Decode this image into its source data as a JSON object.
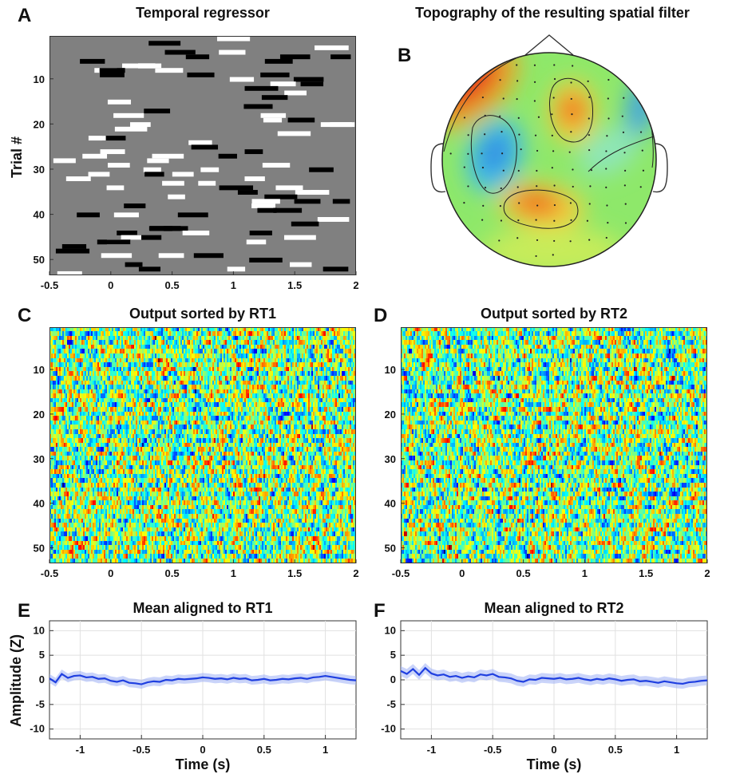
{
  "panels": {
    "A": {
      "letter": "A",
      "title": "Temporal regressor",
      "ylabel": "Trial #"
    },
    "B": {
      "letter": "B",
      "title": "Topography of the resulting spatial filter"
    },
    "C": {
      "letter": "C",
      "title": "Output sorted by RT1"
    },
    "D": {
      "letter": "D",
      "title": "Output sorted by RT2"
    },
    "E": {
      "letter": "E",
      "title": "Mean aligned to RT1",
      "ylabel": "Amplitude (Z)",
      "xlabel": "Time (s)"
    },
    "F": {
      "letter": "F",
      "title": "Mean aligned to RT2",
      "xlabel": "Time (s)"
    }
  },
  "chart_data": [
    {
      "id": "A",
      "type": "heatmap",
      "title": "Temporal regressor",
      "ylabel": "Trial #",
      "xlim": [
        -0.5,
        2
      ],
      "ylim": [
        0.5,
        53.5
      ],
      "y_reversed": true,
      "xticks": [
        -0.5,
        0,
        0.5,
        1,
        1.5,
        2
      ],
      "yticks": [
        10,
        20,
        30,
        40,
        50
      ],
      "colors": {
        "background": "#808080",
        "positive": "#ffffff",
        "negative": "#000000"
      }
    },
    {
      "id": "B",
      "type": "heatmap",
      "title": "Topography of the resulting spatial filter",
      "colormap": "jet",
      "maxima": [
        {
          "region": "left frontal",
          "sign": "positive"
        },
        {
          "region": "central",
          "sign": "positive"
        },
        {
          "region": "posterior midline",
          "sign": "positive"
        },
        {
          "region": "left temporal",
          "sign": "negative"
        },
        {
          "region": "right frontal",
          "sign": "negative"
        }
      ]
    },
    {
      "id": "C",
      "type": "heatmap",
      "title": "Output sorted by RT1",
      "colormap": "jet",
      "xlim": [
        -0.5,
        2
      ],
      "ylim": [
        0.5,
        53.5
      ],
      "y_reversed": true,
      "xticks": [
        -0.5,
        0,
        0.5,
        1,
        1.5,
        2
      ],
      "yticks": [
        10,
        20,
        30,
        40,
        50
      ]
    },
    {
      "id": "D",
      "type": "heatmap",
      "title": "Output sorted by RT2",
      "colormap": "jet",
      "xlim": [
        -0.5,
        2
      ],
      "ylim": [
        0.5,
        53.5
      ],
      "y_reversed": true,
      "xticks": [
        -0.5,
        0,
        0.5,
        1,
        1.5,
        2
      ],
      "yticks": [
        10,
        20,
        30,
        40,
        50
      ]
    },
    {
      "id": "E",
      "type": "line",
      "title": "Mean aligned to RT1",
      "xlabel": "Time (s)",
      "ylabel": "Amplitude (Z)",
      "xlim": [
        -1.25,
        1.25
      ],
      "ylim": [
        -12,
        12
      ],
      "xticks": [
        -1,
        -0.5,
        0,
        0.5,
        1
      ],
      "yticks": [
        -10,
        -5,
        0,
        5,
        10
      ],
      "grid": true,
      "line_color": "#1f3fe0",
      "series": [
        {
          "x": [
            -1.25,
            -1.2,
            -1.15,
            -1.1,
            -1.05,
            -1.0,
            -0.95,
            -0.9,
            -0.85,
            -0.8,
            -0.75,
            -0.7,
            -0.65,
            -0.6,
            -0.55,
            -0.5,
            -0.45,
            -0.4,
            -0.35,
            -0.3,
            -0.25,
            -0.2,
            -0.15,
            -0.1,
            -0.05,
            0.0,
            0.05,
            0.1,
            0.15,
            0.2,
            0.25,
            0.3,
            0.35,
            0.4,
            0.45,
            0.5,
            0.55,
            0.6,
            0.65,
            0.7,
            0.75,
            0.8,
            0.85,
            0.9,
            0.95,
            1.0,
            1.05,
            1.1,
            1.15,
            1.2,
            1.25
          ],
          "y": [
            0.3,
            -0.5,
            1.2,
            0.4,
            0.8,
            0.9,
            0.5,
            0.6,
            0.2,
            0.3,
            -0.2,
            -0.4,
            -0.1,
            -0.6,
            -0.7,
            -0.9,
            -0.5,
            -0.3,
            -0.4,
            0.0,
            -0.1,
            0.2,
            0.1,
            0.2,
            0.3,
            0.5,
            0.4,
            0.2,
            0.3,
            0.1,
            0.4,
            0.2,
            0.3,
            -0.1,
            0.0,
            0.2,
            -0.1,
            0.0,
            0.2,
            0.1,
            0.3,
            0.4,
            0.2,
            0.5,
            0.6,
            0.8,
            0.6,
            0.4,
            0.2,
            0.0,
            -0.1
          ],
          "band": 0.9
        }
      ]
    },
    {
      "id": "F",
      "type": "line",
      "title": "Mean aligned to RT2",
      "xlabel": "Time (s)",
      "ylabel": "",
      "xlim": [
        -1.25,
        1.25
      ],
      "ylim": [
        -12,
        12
      ],
      "xticks": [
        -1,
        -0.5,
        0,
        0.5,
        1
      ],
      "yticks": [
        -10,
        -5,
        0,
        5,
        10
      ],
      "grid": true,
      "line_color": "#1f3fe0",
      "series": [
        {
          "x": [
            -1.25,
            -1.2,
            -1.15,
            -1.1,
            -1.05,
            -1.0,
            -0.95,
            -0.9,
            -0.85,
            -0.8,
            -0.75,
            -0.7,
            -0.65,
            -0.6,
            -0.55,
            -0.5,
            -0.45,
            -0.4,
            -0.35,
            -0.3,
            -0.25,
            -0.2,
            -0.15,
            -0.1,
            -0.05,
            0.0,
            0.05,
            0.1,
            0.15,
            0.2,
            0.25,
            0.3,
            0.35,
            0.4,
            0.45,
            0.5,
            0.55,
            0.6,
            0.65,
            0.7,
            0.75,
            0.8,
            0.85,
            0.9,
            0.95,
            1.0,
            1.05,
            1.1,
            1.15,
            1.2,
            1.25
          ],
          "y": [
            1.8,
            1.2,
            2.2,
            1.0,
            2.4,
            1.3,
            0.9,
            1.1,
            0.6,
            0.8,
            0.4,
            0.7,
            0.5,
            1.1,
            0.9,
            1.2,
            0.6,
            0.5,
            0.3,
            -0.2,
            -0.4,
            0.1,
            0.0,
            0.4,
            0.3,
            0.2,
            0.4,
            0.1,
            0.2,
            0.4,
            0.1,
            -0.1,
            0.2,
            0.0,
            0.3,
            0.1,
            -0.2,
            0.0,
            0.1,
            -0.3,
            -0.2,
            -0.4,
            -0.6,
            -0.3,
            -0.5,
            -0.7,
            -0.8,
            -0.5,
            -0.4,
            -0.2,
            -0.1
          ],
          "band": 1.0
        }
      ]
    }
  ]
}
